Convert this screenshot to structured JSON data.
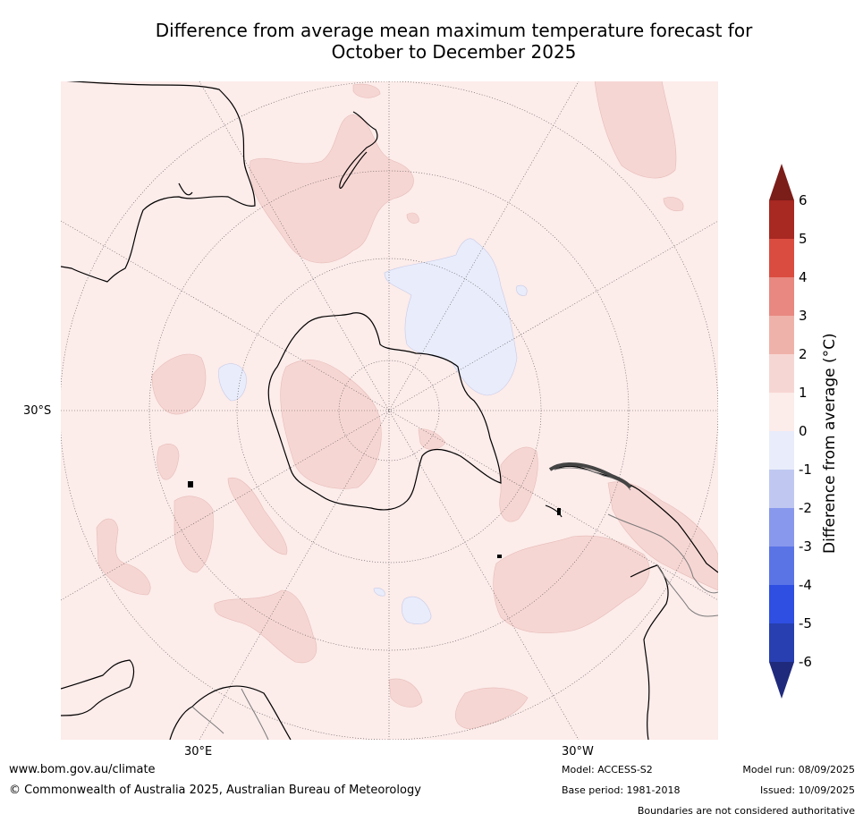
{
  "title_line1": "Difference from average mean maximum temperature forecast for",
  "title_line2": "October to December 2025",
  "map_labels": {
    "lat_30s": "30°S",
    "lon_30e": "30°E",
    "lon_30w": "30°W"
  },
  "colorbar": {
    "title": "Difference from average (°C)",
    "ticks": [
      "6",
      "5",
      "4",
      "3",
      "2",
      "1",
      "0",
      "-1",
      "-2",
      "-3",
      "-4",
      "-5",
      "-6"
    ],
    "colors_high_to_low": [
      "#a82822",
      "#db4c40",
      "#e88880",
      "#efb2aa",
      "#f6d6d3",
      "#fcecea",
      "#e9ecfb",
      "#c0c8f2",
      "#8898ec",
      "#5a74e6",
      "#2f4fe2",
      "#273fb0"
    ],
    "top_arrow_color": "#7b1d19",
    "bottom_arrow_color": "#1f2a7c"
  },
  "footer": {
    "website": "www.bom.gov.au/climate",
    "copyright": "© Commonwealth of Australia 2025, Australian Bureau of Meteorology",
    "model": "Model: ACCESS-S2",
    "base_period": "Base period: 1981-2018",
    "model_run": "Model run: 08/09/2025",
    "issued": "Issued: 10/09/2025",
    "disclaimer": "Boundaries are not considered authoritative"
  }
}
